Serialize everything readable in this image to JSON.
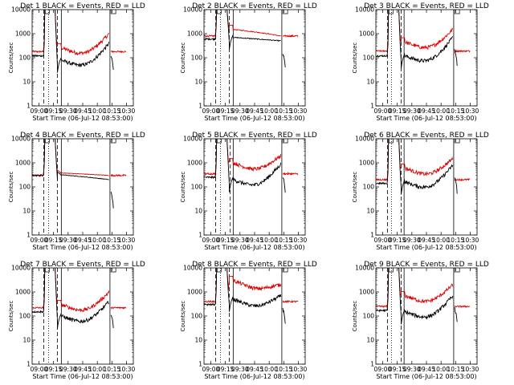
{
  "chart_data": {
    "type": "line",
    "layout": "grid",
    "rows": 3,
    "cols": 3,
    "legend_text": "BLACK = Events, RED = LLD",
    "xlabel": "Start Time (06-Jul-12 08:53:00)",
    "ylabel": "Counts/sec",
    "x_tick_labels": [
      "09:00",
      "09:15",
      "09:30",
      "09:45",
      "10:00",
      "10:15",
      "10:30"
    ],
    "x_tick_minutes": [
      7,
      22,
      37,
      52,
      67,
      82,
      97
    ],
    "x_range_minutes": [
      0,
      104
    ],
    "y_scale": "log",
    "y_range": [
      1,
      10000
    ],
    "y_tick_labels": [
      "1",
      "10",
      "100",
      "1000",
      "10000"
    ],
    "series_colors": {
      "events": "#000000",
      "lld": "#dd0000"
    },
    "panels": [
      {
        "title": "Det 1",
        "profile": "A",
        "lld_base": 180,
        "evt_base": 120,
        "lld_mid": 260,
        "evt_mid": 80,
        "lld_end": 1000,
        "evt_end": 400,
        "vlines": [
          {
            "x": 12,
            "s": "dash"
          },
          {
            "x": 17,
            "s": "dot"
          },
          {
            "x": 26,
            "s": "dash"
          },
          {
            "x": 30,
            "s": "solid"
          },
          {
            "x": 80,
            "s": "solid"
          }
        ]
      },
      {
        "title": "Det 2",
        "profile": "B",
        "lld_base": 800,
        "evt_base": 600,
        "lld_mid": 1500,
        "evt_mid": 700,
        "lld_end": 800,
        "evt_end": 500,
        "vlines": [
          {
            "x": 12,
            "s": "dash"
          },
          {
            "x": 17,
            "s": "dot"
          },
          {
            "x": 26,
            "s": "dash"
          },
          {
            "x": 30,
            "s": "solid"
          },
          {
            "x": 80,
            "s": "solid"
          }
        ]
      },
      {
        "title": "Det 3",
        "profile": "A",
        "lld_base": 190,
        "evt_base": 120,
        "lld_mid": 450,
        "evt_mid": 120,
        "lld_end": 1500,
        "evt_end": 700,
        "vlines": [
          {
            "x": 12,
            "s": "dash"
          },
          {
            "x": 16,
            "s": "dot"
          },
          {
            "x": 26,
            "s": "dash"
          },
          {
            "x": 29,
            "s": "solid"
          },
          {
            "x": 80,
            "s": "solid"
          }
        ]
      },
      {
        "title": "Det 4",
        "profile": "C",
        "lld_base": 300,
        "evt_base": 300,
        "lld_mid": 380,
        "evt_mid": 320,
        "lld_end": 300,
        "evt_end": 200,
        "vlines": [
          {
            "x": 12,
            "s": "dash"
          },
          {
            "x": 17,
            "s": "dot"
          },
          {
            "x": 26,
            "s": "dash"
          },
          {
            "x": 30,
            "s": "solid"
          },
          {
            "x": 80,
            "s": "solid"
          }
        ]
      },
      {
        "title": "Det 5",
        "profile": "A",
        "lld_base": 350,
        "evt_base": 250,
        "lld_mid": 1000,
        "evt_mid": 200,
        "lld_end": 2000,
        "evt_end": 900,
        "vlines": [
          {
            "x": 12,
            "s": "dash"
          },
          {
            "x": 17,
            "s": "dot"
          },
          {
            "x": 27,
            "s": "dash"
          },
          {
            "x": 30,
            "s": "solid"
          },
          {
            "x": 80,
            "s": "solid"
          }
        ]
      },
      {
        "title": "Det 6",
        "profile": "A",
        "lld_base": 200,
        "evt_base": 140,
        "lld_mid": 600,
        "evt_mid": 160,
        "lld_end": 1500,
        "evt_end": 800,
        "vlines": [
          {
            "x": 12,
            "s": "dash"
          },
          {
            "x": 16,
            "s": "dot"
          },
          {
            "x": 26,
            "s": "dash"
          },
          {
            "x": 29,
            "s": "solid"
          },
          {
            "x": 80,
            "s": "solid"
          }
        ]
      },
      {
        "title": "Det 7",
        "profile": "A",
        "lld_base": 220,
        "evt_base": 150,
        "lld_mid": 300,
        "evt_mid": 100,
        "lld_end": 1000,
        "evt_end": 400,
        "vlines": [
          {
            "x": 12,
            "s": "dash"
          },
          {
            "x": 17,
            "s": "dot"
          },
          {
            "x": 26,
            "s": "dash"
          },
          {
            "x": 30,
            "s": "solid"
          },
          {
            "x": 80,
            "s": "solid"
          }
        ]
      },
      {
        "title": "Det 8",
        "profile": "A",
        "lld_base": 400,
        "evt_base": 300,
        "lld_mid": 3000,
        "evt_mid": 500,
        "lld_end": 2000,
        "evt_end": 700,
        "vlines": [
          {
            "x": 12,
            "s": "dash"
          },
          {
            "x": 17,
            "s": "dot"
          },
          {
            "x": 26,
            "s": "dash"
          },
          {
            "x": 30,
            "s": "solid"
          },
          {
            "x": 80,
            "s": "solid"
          }
        ]
      },
      {
        "title": "Det 9",
        "profile": "A",
        "lld_base": 250,
        "evt_base": 170,
        "lld_mid": 700,
        "evt_mid": 150,
        "lld_end": 2000,
        "evt_end": 700,
        "vlines": [
          {
            "x": 12,
            "s": "dash"
          },
          {
            "x": 16,
            "s": "dot"
          },
          {
            "x": 26,
            "s": "dash"
          },
          {
            "x": 29,
            "s": "solid"
          },
          {
            "x": 80,
            "s": "solid"
          }
        ]
      }
    ]
  }
}
